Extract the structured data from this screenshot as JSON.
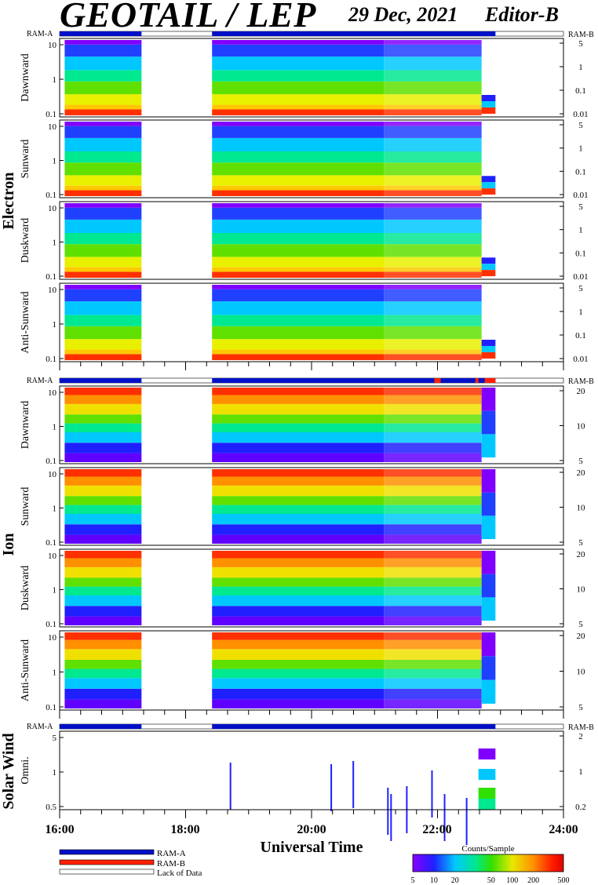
{
  "header": {
    "title": "GEOTAIL / LEP",
    "date": "29 Dec, 2021",
    "editor": "Editor-B"
  },
  "ram_labels": {
    "a": "RAM-A",
    "b": "RAM-B"
  },
  "sections": {
    "electron": "Electron",
    "ion": "Ion",
    "solar_wind": "Solar Wind"
  },
  "x_axis": {
    "label": "Universal Time",
    "ticks": [
      "16:00",
      "18:00",
      "20:00",
      "22:00",
      "24:00"
    ]
  },
  "legend": {
    "ram_a": "RAM-A",
    "ram_b": "RAM-B",
    "lack": "Lack of Data"
  },
  "colorbar": {
    "title": "Counts/Sample",
    "ticks": [
      "5",
      "10",
      "20",
      "50",
      "100",
      "200",
      "500"
    ],
    "colors": [
      "#8800ff",
      "#2020ff",
      "#00c8ff",
      "#00e88c",
      "#30e000",
      "#e8e800",
      "#ff9000",
      "#ff2000",
      "#e00000"
    ]
  },
  "chart_data": {
    "type": "heatmap",
    "time_range": [
      "16:00",
      "24:00"
    ],
    "data_gaps": [
      [
        "17:18",
        "18:25"
      ],
      [
        "22:55",
        "24:00"
      ]
    ],
    "panels": [
      {
        "group": "Electron",
        "name": "Dawnward",
        "left_ticks": [
          "10",
          "1",
          "0.1"
        ],
        "right_ticks": [
          "5",
          "1",
          "0.1",
          "0.01"
        ]
      },
      {
        "group": "Electron",
        "name": "Sunward",
        "left_ticks": [
          "10",
          "1",
          "0.1"
        ],
        "right_ticks": [
          "5",
          "1",
          "0.1",
          "0.01"
        ]
      },
      {
        "group": "Electron",
        "name": "Duskward",
        "left_ticks": [
          "10",
          "1",
          "0.1"
        ],
        "right_ticks": [
          "5",
          "1",
          "0.1",
          "0.01"
        ]
      },
      {
        "group": "Electron",
        "name": "Anti-Sunward",
        "left_ticks": [
          "10",
          "1",
          "0.1"
        ],
        "right_ticks": [
          "5",
          "1",
          "0.1",
          "0.01"
        ]
      },
      {
        "group": "Ion",
        "name": "Dawnward",
        "left_ticks": [
          "10",
          "1",
          "0.1"
        ],
        "right_ticks": [
          "20",
          "10",
          "5"
        ]
      },
      {
        "group": "Ion",
        "name": "Sunward",
        "left_ticks": [
          "10",
          "1",
          "0.1"
        ],
        "right_ticks": [
          "20",
          "10",
          "5"
        ]
      },
      {
        "group": "Ion",
        "name": "Duskward",
        "left_ticks": [
          "10",
          "1",
          "0.1"
        ],
        "right_ticks": [
          "20",
          "10",
          "5"
        ]
      },
      {
        "group": "Ion",
        "name": "Anti-Sunward",
        "left_ticks": [
          "10",
          "1",
          "0.1"
        ],
        "right_ticks": [
          "20",
          "10",
          "5"
        ]
      },
      {
        "group": "Solar Wind",
        "name": "Omni.",
        "left_ticks": [
          "5",
          "1",
          "0.5"
        ],
        "right_ticks": [
          "2",
          "1",
          "0.2"
        ]
      }
    ]
  }
}
